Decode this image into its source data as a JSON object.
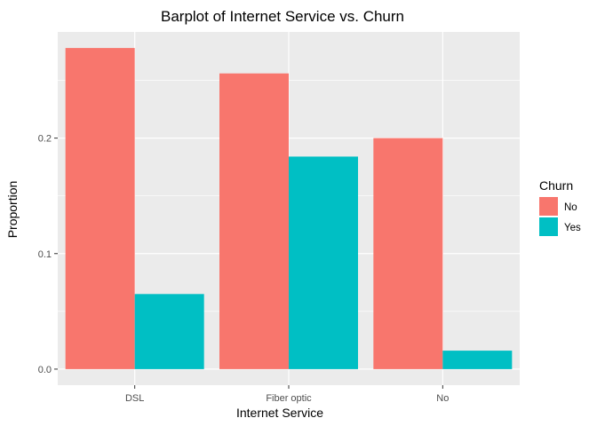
{
  "chart_data": {
    "type": "bar",
    "title": "Barplot of Internet Service vs. Churn",
    "xlabel": "Internet Service",
    "ylabel": "Proportion",
    "categories": [
      "DSL",
      "Fiber optic",
      "No"
    ],
    "series": [
      {
        "name": "No",
        "color": "#F8766D",
        "values": [
          0.278,
          0.256,
          0.2
        ]
      },
      {
        "name": "Yes",
        "color": "#00BFC4",
        "values": [
          0.065,
          0.184,
          0.016
        ]
      }
    ],
    "yticks": [
      0.0,
      0.1,
      0.2
    ],
    "ytick_labels": [
      "0.0",
      "0.1",
      "0.2"
    ],
    "ylim": [
      -0.0139,
      0.2919
    ],
    "grid": true,
    "legend": {
      "title": "Churn",
      "position": "right"
    },
    "panel_background": "#EBEBEB",
    "gridline_color": "#FFFFFF"
  }
}
